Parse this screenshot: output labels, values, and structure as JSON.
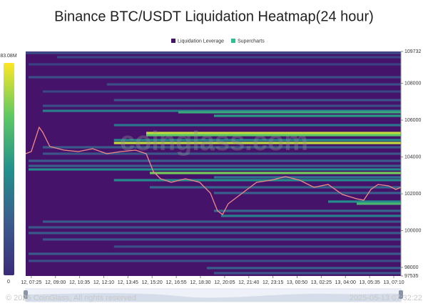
{
  "chart_data": {
    "type": "heatmap",
    "title": "Binance BTC/USDT Liquidation Heatmap(24 hour)",
    "legend": [
      {
        "name": "Liquidation Leverage",
        "color": "#46136b"
      },
      {
        "name": "Supercharts",
        "color": "#2fbf8f"
      }
    ],
    "watermark": "coinglass.com",
    "copyright": "© 2025 CoinGlass, All rights reserved",
    "timestamp": "2025-05-13 07:32:22",
    "background": "#46136b",
    "colorscale": [
      "#3b2a7a",
      "#3b5c8d",
      "#21918c",
      "#5ec962",
      "#fde725"
    ],
    "colorbar_ticks": [
      0,
      {
        "value": 83.08,
        "label": "83.08M"
      }
    ],
    "ylim": [
      97535,
      109732
    ],
    "yticks": [
      97535,
      98000,
      100000,
      102000,
      104000,
      106000,
      108000,
      109732
    ],
    "xlim": [
      -22,
      1453
    ],
    "xticks": [
      {
        "value": 0,
        "label": "12, 07:25"
      },
      {
        "value": 95,
        "label": "12, 09:00"
      },
      {
        "value": 190,
        "label": "12, 10:35"
      },
      {
        "value": 285,
        "label": "12, 12:10"
      },
      {
        "value": 380,
        "label": "12, 13:45"
      },
      {
        "value": 475,
        "label": "12, 15:20"
      },
      {
        "value": 570,
        "label": "12, 16:55"
      },
      {
        "value": 665,
        "label": "12, 18:30"
      },
      {
        "value": 760,
        "label": "12, 20:05"
      },
      {
        "value": 855,
        "label": "12, 21:40"
      },
      {
        "value": 950,
        "label": "12, 23:15"
      },
      {
        "value": 1045,
        "label": "13, 00:50"
      },
      {
        "value": 1140,
        "label": "13, 02:25"
      },
      {
        "value": 1235,
        "label": "13, 04:00"
      },
      {
        "value": 1330,
        "label": "13, 05:35"
      },
      {
        "value": 1425,
        "label": "13, 07:10"
      }
    ],
    "heatmap": {
      "price": [
        109654,
        109421,
        109033,
        108334,
        107945,
        107557,
        107091,
        106780,
        106508,
        106430,
        106236,
        105731,
        105304,
        105188,
        104916,
        104760,
        104527,
        104178,
        103790,
        103517,
        103323,
        103129,
        102896,
        102741,
        102353,
        102043,
        101576,
        101460,
        101072,
        100800,
        100488,
        100178,
        99867,
        99518,
        99130,
        98741,
        98353,
        97965,
        97690
      ],
      "start": [
        -22,
        101,
        -11,
        -11,
        297,
        45,
        325,
        45,
        45,
        578,
        718,
        325,
        452,
        452,
        325,
        325,
        45,
        45,
        -11,
        -11,
        -11,
        466,
        718,
        325,
        466,
        718,
        1167,
        1279,
        718,
        746,
        45,
        -11,
        -11,
        45,
        325,
        -11,
        -11,
        690,
        718
      ],
      "values": [
        15,
        12,
        10,
        15,
        15,
        12,
        18,
        15,
        35,
        50,
        45,
        30,
        75,
        62,
        40,
        75,
        20,
        18,
        20,
        22,
        40,
        65,
        30,
        40,
        25,
        22,
        40,
        55,
        25,
        35,
        20,
        18,
        20,
        18,
        15,
        20,
        15,
        22,
        18
      ]
    },
    "price_line": {
      "color": "#f08a8a",
      "x": [
        -22,
        0,
        31,
        45,
        73,
        129,
        185,
        241,
        297,
        353,
        410,
        452,
        480,
        508,
        550,
        606,
        662,
        704,
        732,
        752,
        774,
        830,
        886,
        943,
        999,
        1055,
        1111,
        1167,
        1223,
        1279,
        1307,
        1335,
        1363,
        1405,
        1433,
        1453
      ],
      "values": [
        104178,
        104294,
        105615,
        105343,
        104566,
        104372,
        104294,
        104450,
        104178,
        104294,
        104372,
        104178,
        103207,
        102819,
        102624,
        102819,
        102624,
        102042,
        101071,
        100876,
        101459,
        102042,
        102624,
        102741,
        102935,
        102741,
        102352,
        102508,
        101964,
        101731,
        101653,
        102236,
        102508,
        102430,
        102236,
        102352
      ]
    }
  }
}
